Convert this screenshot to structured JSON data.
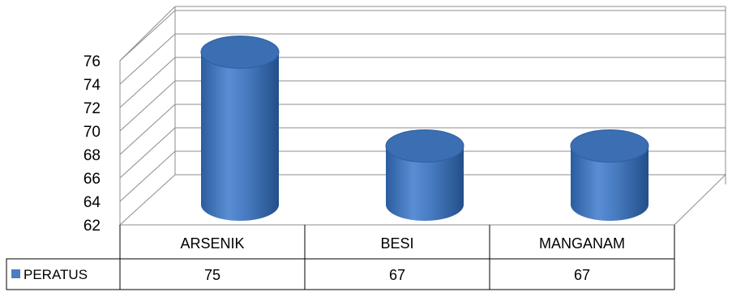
{
  "chart_data": {
    "type": "bar",
    "style": "3d-cylinder",
    "categories": [
      "ARSENIK",
      "BESI",
      "MANGANAM"
    ],
    "series": [
      {
        "name": "PERATUS",
        "values": [
          75,
          67,
          67
        ],
        "color": "#4a7ec4"
      }
    ],
    "ylim": [
      62,
      76
    ],
    "yticks": [
      62,
      64,
      66,
      68,
      70,
      72,
      74,
      76
    ],
    "grid": true,
    "legend": "data-table-left",
    "data_table": true
  }
}
